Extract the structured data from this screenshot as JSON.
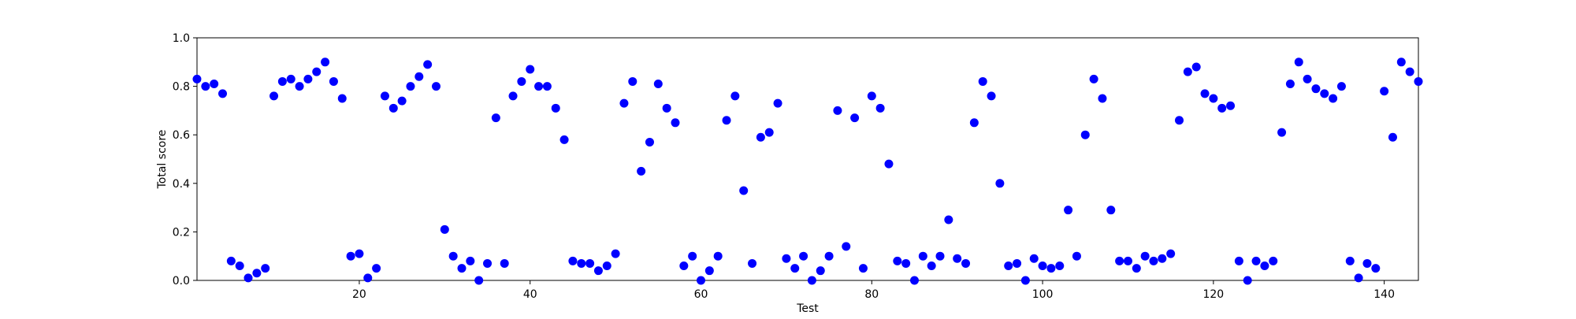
{
  "chart_data": {
    "type": "scatter",
    "title": "",
    "xlabel": "Test",
    "ylabel": "Total score",
    "xlim": [
      1,
      144
    ],
    "ylim": [
      0.0,
      1.0
    ],
    "xticks": [
      20,
      40,
      60,
      80,
      100,
      120,
      140
    ],
    "yticks": [
      0.0,
      0.2,
      0.4,
      0.6,
      0.8,
      1.0
    ],
    "xtick_labels": [
      "20",
      "40",
      "60",
      "80",
      "100",
      "120",
      "140"
    ],
    "ytick_labels": [
      "0.0",
      "0.2",
      "0.4",
      "0.6",
      "0.8",
      "1.0"
    ],
    "grid": false,
    "marker_color": "#0000ff",
    "series": [
      {
        "x": [
          1,
          2,
          3,
          4,
          5,
          6,
          7,
          8,
          9,
          10,
          11,
          12,
          13,
          14,
          15,
          16,
          17,
          18,
          19,
          20,
          21,
          22,
          23,
          24,
          25,
          26,
          27,
          28,
          29,
          30,
          31,
          32,
          33,
          34,
          35,
          36,
          37,
          38,
          39,
          40,
          41,
          42,
          43,
          44,
          45,
          46,
          47,
          48,
          49,
          50,
          51,
          52,
          53,
          54,
          55,
          56,
          57,
          58,
          59,
          60,
          61,
          62,
          63,
          64,
          65,
          66,
          67,
          68,
          69,
          70,
          71,
          72,
          73,
          74,
          75,
          76,
          77,
          78,
          79,
          80,
          81,
          82,
          83,
          84,
          85,
          86,
          87,
          88,
          89,
          90,
          91,
          92,
          93,
          94,
          95,
          96,
          97,
          98,
          99,
          100,
          101,
          102,
          103,
          104,
          105,
          106,
          107,
          108,
          109,
          110,
          111,
          112,
          113,
          114,
          115,
          116,
          117,
          118,
          119,
          120,
          121,
          122,
          123,
          124,
          125,
          126,
          127,
          128,
          129,
          130,
          131,
          132,
          133,
          134,
          135,
          136,
          137,
          138,
          139,
          140,
          141,
          142,
          143,
          144
        ],
        "y": [
          0.83,
          0.8,
          0.81,
          0.77,
          0.08,
          0.06,
          0.01,
          0.03,
          0.05,
          0.76,
          0.82,
          0.83,
          0.8,
          0.83,
          0.86,
          0.9,
          0.82,
          0.75,
          0.1,
          0.11,
          0.01,
          0.05,
          0.76,
          0.71,
          0.74,
          0.8,
          0.84,
          0.89,
          0.8,
          0.21,
          0.1,
          0.05,
          0.08,
          0.0,
          0.07,
          0.67,
          0.07,
          0.76,
          0.82,
          0.87,
          0.8,
          0.8,
          0.71,
          0.58,
          0.08,
          0.07,
          0.07,
          0.04,
          0.06,
          0.11,
          0.73,
          0.82,
          0.45,
          0.57,
          0.81,
          0.71,
          0.65,
          0.06,
          0.1,
          0.0,
          0.04,
          0.1,
          0.66,
          0.76,
          0.37,
          0.07,
          0.59,
          0.61,
          0.73,
          0.09,
          0.05,
          0.1,
          0.0,
          0.04,
          0.1,
          0.7,
          0.14,
          0.67,
          0.05,
          0.76,
          0.71,
          0.48,
          0.08,
          0.07,
          0.0,
          0.1,
          0.06,
          0.1,
          0.25,
          0.09,
          0.07,
          0.65,
          0.82,
          0.76,
          0.4,
          0.06,
          0.07,
          0.0,
          0.09,
          0.06,
          0.05,
          0.06,
          0.29,
          0.1,
          0.6,
          0.83,
          0.75,
          0.29,
          0.08,
          0.08,
          0.05,
          0.1,
          0.08,
          0.09,
          0.11,
          0.66,
          0.86,
          0.88,
          0.77,
          0.75,
          0.71,
          0.72,
          0.08,
          0.0,
          0.08,
          0.06,
          0.08,
          0.61,
          0.81,
          0.9,
          0.83,
          0.79,
          0.77,
          0.75,
          0.8,
          0.08,
          0.01,
          0.07,
          0.05,
          0.78,
          0.59,
          0.9,
          0.86,
          0.82
        ]
      }
    ]
  }
}
